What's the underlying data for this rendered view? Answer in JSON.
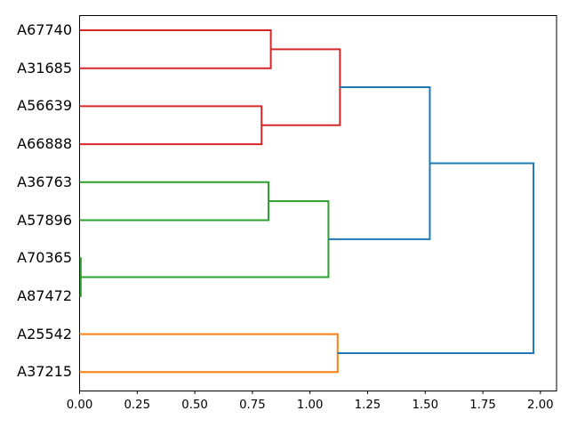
{
  "chart_data": {
    "type": "dendrogram",
    "title": "",
    "xlabel": "",
    "ylabel": "",
    "orientation": "labels-left-root-right",
    "grid": false,
    "legend": null,
    "xlim": [
      0,
      2.07
    ],
    "x_ticks": [
      0.0,
      0.25,
      0.5,
      0.75,
      1.0,
      1.25,
      1.5,
      1.75,
      2.0
    ],
    "x_tick_labels": [
      "0.00",
      "0.25",
      "0.50",
      "0.75",
      "1.00",
      "1.25",
      "1.50",
      "1.75",
      "2.00"
    ],
    "leaves": [
      "A67740",
      "A31685",
      "A56639",
      "A66888",
      "A36763",
      "A57896",
      "A70365",
      "A87472",
      "A25542",
      "A37215"
    ],
    "colors": {
      "above_threshold_link": "#1f77b4",
      "cluster_red": "#d62728",
      "cluster_green": "#2ca02c",
      "cluster_orange": "#ff7f0e",
      "axis": "#000000",
      "background": "#ffffff"
    },
    "linkage": {
      "h": 1.97,
      "color": "#1f77b4",
      "children": [
        {
          "h": 1.52,
          "color": "#1f77b4",
          "children": [
            {
              "h": 1.13,
              "color": "#d62728",
              "children": [
                {
                  "h": 0.83,
                  "color": "#d62728",
                  "children": [
                    {
                      "leaf": "A67740"
                    },
                    {
                      "leaf": "A31685"
                    }
                  ]
                },
                {
                  "h": 0.79,
                  "color": "#d62728",
                  "children": [
                    {
                      "leaf": "A56639"
                    },
                    {
                      "leaf": "A66888"
                    }
                  ]
                }
              ]
            },
            {
              "h": 1.08,
              "color": "#2ca02c",
              "children": [
                {
                  "h": 0.82,
                  "color": "#2ca02c",
                  "children": [
                    {
                      "leaf": "A36763"
                    },
                    {
                      "leaf": "A57896"
                    }
                  ]
                },
                {
                  "h": 0.005,
                  "color": "#2ca02c",
                  "children": [
                    {
                      "leaf": "A70365"
                    },
                    {
                      "leaf": "A87472"
                    }
                  ]
                }
              ]
            }
          ]
        },
        {
          "h": 1.12,
          "color": "#ff7f0e",
          "children": [
            {
              "leaf": "A25542"
            },
            {
              "leaf": "A37215"
            }
          ]
        }
      ]
    }
  }
}
